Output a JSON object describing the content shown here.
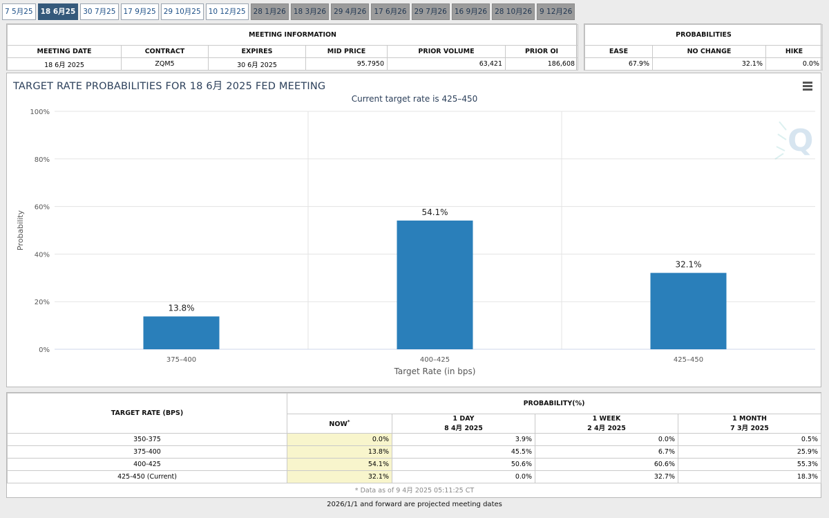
{
  "tabs": [
    {
      "label": "7 5月25",
      "state": "normal"
    },
    {
      "label": "18 6月25",
      "state": "active"
    },
    {
      "label": "30 7月25",
      "state": "normal"
    },
    {
      "label": "17 9月25",
      "state": "normal"
    },
    {
      "label": "29 10月25",
      "state": "normal"
    },
    {
      "label": "10 12月25",
      "state": "normal"
    },
    {
      "label": "28 1月26",
      "state": "future"
    },
    {
      "label": "18 3月26",
      "state": "future"
    },
    {
      "label": "29 4月26",
      "state": "future"
    },
    {
      "label": "17 6月26",
      "state": "future"
    },
    {
      "label": "29 7月26",
      "state": "future"
    },
    {
      "label": "16 9月26",
      "state": "future"
    },
    {
      "label": "28 10月26",
      "state": "future"
    },
    {
      "label": "9 12月26",
      "state": "future"
    }
  ],
  "meeting_info": {
    "title": "MEETING INFORMATION",
    "headers": {
      "date": "MEETING DATE",
      "contract": "CONTRACT",
      "expires": "EXPIRES",
      "mid": "MID PRICE",
      "volume": "PRIOR VOLUME",
      "oi": "PRIOR OI"
    },
    "values": {
      "date": "18 6月 2025",
      "contract": "ZQM5",
      "expires": "30 6月 2025",
      "mid": "95.7950",
      "volume": "63,421",
      "oi": "186,608"
    }
  },
  "probabilities": {
    "title": "PROBABILITIES",
    "headers": {
      "ease": "EASE",
      "no_change": "NO CHANGE",
      "hike": "HIKE"
    },
    "values": {
      "ease": "67.9%",
      "no_change": "32.1%",
      "hike": "0.0%"
    }
  },
  "chart": {
    "title": "TARGET RATE PROBABILITIES FOR 18 6月 2025 FED MEETING",
    "subtitle": "Current target rate is 425–450",
    "bar_color": "#2a7fba"
  },
  "chart_data": {
    "type": "bar",
    "categories": [
      "375–400",
      "400–425",
      "425–450"
    ],
    "values": [
      13.8,
      54.1,
      32.1
    ],
    "data_labels": [
      "13.8%",
      "54.1%",
      "32.1%"
    ],
    "yticks": [
      "0%",
      "20%",
      "40%",
      "60%",
      "80%",
      "100%"
    ],
    "ylim": [
      0,
      100
    ],
    "xlabel": "Target Rate (in bps)",
    "ylabel": "Probability",
    "grid": true
  },
  "prob_table": {
    "rate_header": "TARGET RATE (BPS)",
    "prob_header": "PROBABILITY(%)",
    "now_header": "NOW",
    "now_mark": "*",
    "col_1day": "1 DAY",
    "col_1day_date": "8 4月 2025",
    "col_1week": "1 WEEK",
    "col_1week_date": "2 4月 2025",
    "col_1month": "1 MONTH",
    "col_1month_date": "7 3月 2025",
    "rows": [
      {
        "rate": "350-375",
        "now": "0.0%",
        "day": "3.9%",
        "week": "0.0%",
        "month": "0.5%"
      },
      {
        "rate": "375-400",
        "now": "13.8%",
        "day": "45.5%",
        "week": "6.7%",
        "month": "25.9%"
      },
      {
        "rate": "400-425",
        "now": "54.1%",
        "day": "50.6%",
        "week": "60.6%",
        "month": "55.3%"
      },
      {
        "rate": "425-450 (Current)",
        "now": "32.1%",
        "day": "0.0%",
        "week": "32.7%",
        "month": "18.3%"
      }
    ],
    "footnote": "* Data as of 9 4月 2025 05:11:25 CT"
  },
  "bottom_note": "2026/1/1 and forward are projected meeting dates"
}
